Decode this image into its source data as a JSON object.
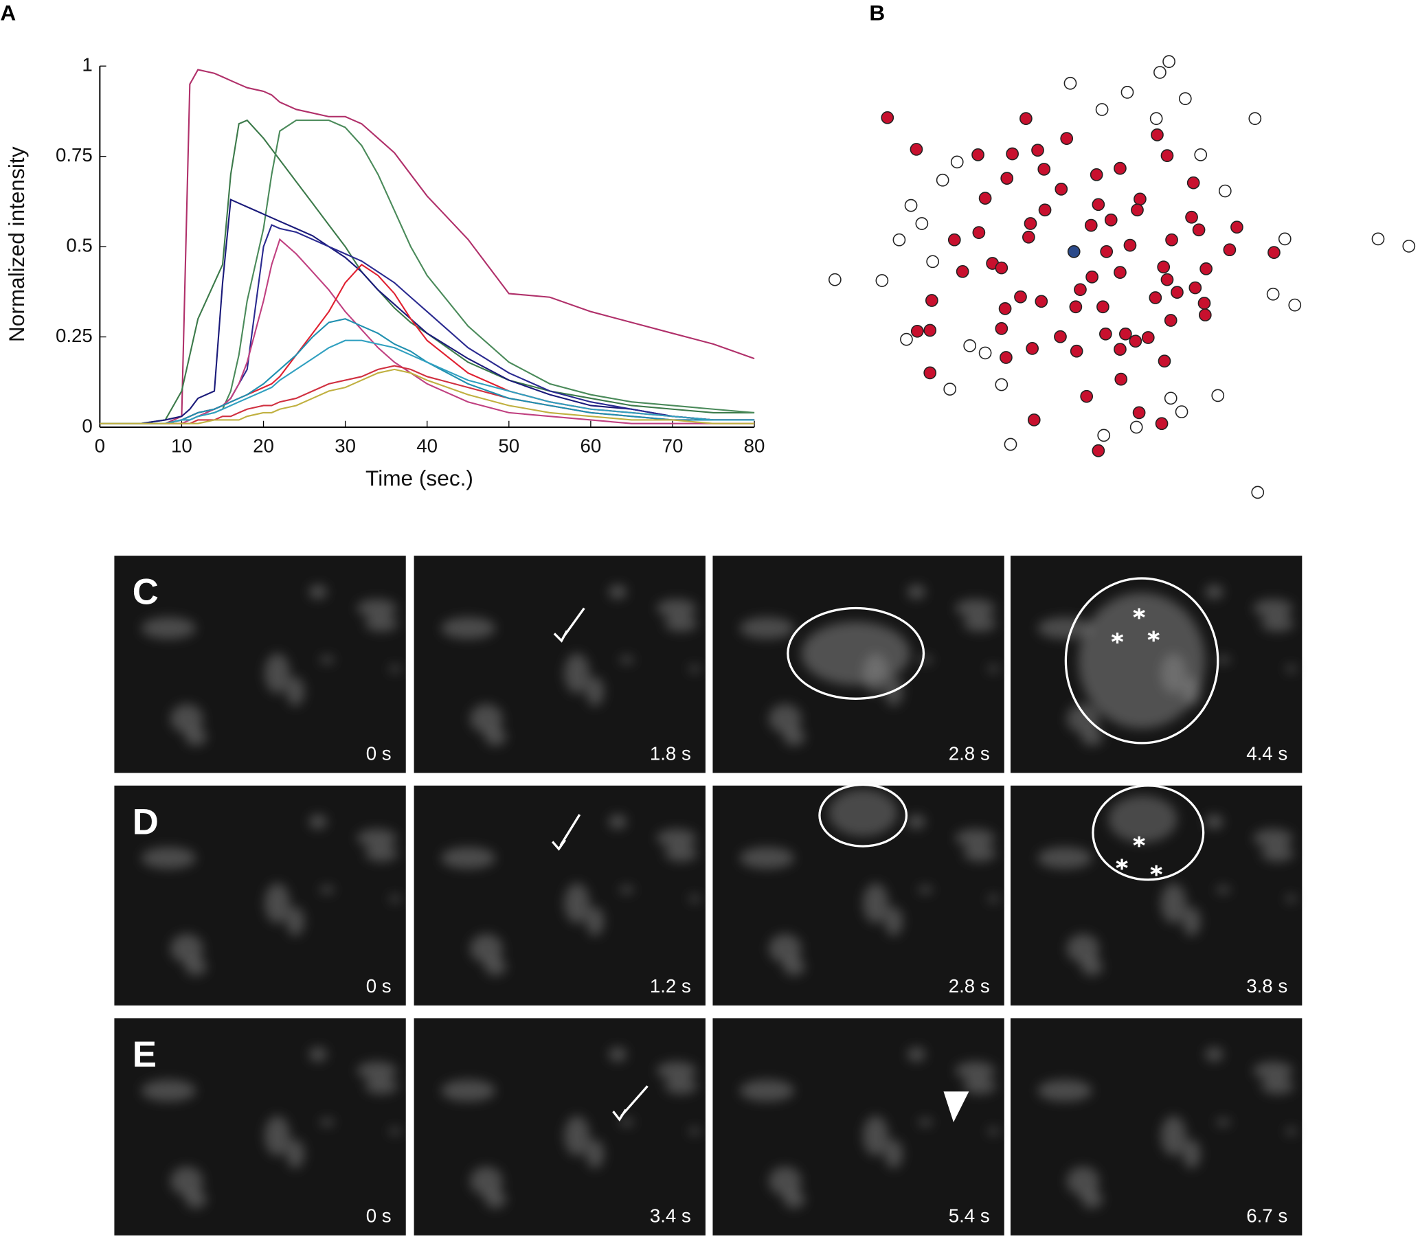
{
  "chart_data": [
    {
      "type": "line",
      "panel_label": "A",
      "xlabel": "Time (sec.)",
      "ylabel": "Normalized intensity",
      "x": [
        0,
        5,
        8,
        10,
        11,
        12,
        14,
        15,
        16,
        17,
        18,
        20,
        21,
        22,
        24,
        26,
        28,
        30,
        32,
        34,
        36,
        38,
        40,
        45,
        50,
        55,
        60,
        65,
        70,
        75,
        80
      ],
      "xlim": [
        0,
        80
      ],
      "xticks": [
        0,
        10,
        20,
        30,
        40,
        50,
        60,
        70,
        80
      ],
      "ylim": [
        0,
        1
      ],
      "yticks": [
        0,
        0.25,
        0.5,
        0.75,
        1
      ],
      "series": [
        {
          "color": "#b0306a",
          "values": [
            0.01,
            0.01,
            0.01,
            0.03,
            0.95,
            0.99,
            0.98,
            0.97,
            0.96,
            0.95,
            0.94,
            0.93,
            0.92,
            0.9,
            0.88,
            0.87,
            0.86,
            0.86,
            0.84,
            0.8,
            0.76,
            0.7,
            0.64,
            0.52,
            0.37,
            0.36,
            0.32,
            0.29,
            0.26,
            0.23,
            0.19
          ]
        },
        {
          "color": "#3c7a4a",
          "values": [
            0.01,
            0.01,
            0.02,
            0.1,
            0.2,
            0.3,
            0.4,
            0.45,
            0.7,
            0.84,
            0.85,
            0.8,
            0.77,
            0.74,
            0.68,
            0.62,
            0.56,
            0.5,
            0.43,
            0.38,
            0.33,
            0.29,
            0.26,
            0.18,
            0.13,
            0.1,
            0.08,
            0.06,
            0.05,
            0.04,
            0.04
          ]
        },
        {
          "color": "#4a8a5a",
          "values": [
            0.01,
            0.01,
            0.01,
            0.02,
            0.02,
            0.03,
            0.04,
            0.05,
            0.1,
            0.2,
            0.35,
            0.55,
            0.7,
            0.82,
            0.85,
            0.85,
            0.85,
            0.83,
            0.78,
            0.7,
            0.6,
            0.5,
            0.42,
            0.28,
            0.18,
            0.12,
            0.09,
            0.07,
            0.06,
            0.05,
            0.04
          ]
        },
        {
          "color": "#1a1a7a",
          "values": [
            0.01,
            0.01,
            0.02,
            0.03,
            0.05,
            0.08,
            0.1,
            0.4,
            0.63,
            0.62,
            0.61,
            0.59,
            0.58,
            0.57,
            0.55,
            0.53,
            0.5,
            0.47,
            0.43,
            0.38,
            0.34,
            0.3,
            0.26,
            0.19,
            0.13,
            0.09,
            0.06,
            0.05,
            0.03,
            0.02,
            0.02
          ]
        },
        {
          "color": "#2a2a90",
          "values": [
            0.01,
            0.01,
            0.01,
            0.02,
            0.03,
            0.04,
            0.05,
            0.06,
            0.08,
            0.12,
            0.16,
            0.5,
            0.56,
            0.55,
            0.54,
            0.52,
            0.5,
            0.48,
            0.46,
            0.43,
            0.4,
            0.36,
            0.32,
            0.22,
            0.15,
            0.1,
            0.07,
            0.05,
            0.03,
            0.02,
            0.02
          ]
        },
        {
          "color": "#c04080",
          "values": [
            0.01,
            0.01,
            0.01,
            0.01,
            0.02,
            0.03,
            0.05,
            0.06,
            0.08,
            0.12,
            0.18,
            0.35,
            0.45,
            0.52,
            0.48,
            0.43,
            0.38,
            0.32,
            0.27,
            0.22,
            0.18,
            0.15,
            0.12,
            0.07,
            0.04,
            0.03,
            0.02,
            0.01,
            0.01,
            0.01,
            0.01
          ]
        },
        {
          "color": "#e02030",
          "values": [
            0.01,
            0.01,
            0.01,
            0.02,
            0.03,
            0.04,
            0.05,
            0.06,
            0.07,
            0.08,
            0.09,
            0.11,
            0.12,
            0.14,
            0.2,
            0.26,
            0.32,
            0.4,
            0.45,
            0.42,
            0.37,
            0.3,
            0.24,
            0.15,
            0.1,
            0.07,
            0.05,
            0.04,
            0.03,
            0.02,
            0.02
          ]
        },
        {
          "color": "#d03040",
          "values": [
            0.01,
            0.01,
            0.01,
            0.01,
            0.01,
            0.02,
            0.02,
            0.03,
            0.03,
            0.04,
            0.05,
            0.06,
            0.06,
            0.07,
            0.08,
            0.1,
            0.12,
            0.13,
            0.14,
            0.16,
            0.17,
            0.16,
            0.14,
            0.11,
            0.08,
            0.06,
            0.04,
            0.03,
            0.02,
            0.02,
            0.02
          ]
        },
        {
          "color": "#2090b0",
          "values": [
            0.01,
            0.01,
            0.01,
            0.02,
            0.03,
            0.04,
            0.05,
            0.06,
            0.07,
            0.08,
            0.09,
            0.12,
            0.14,
            0.16,
            0.2,
            0.25,
            0.29,
            0.3,
            0.28,
            0.26,
            0.23,
            0.21,
            0.18,
            0.12,
            0.08,
            0.06,
            0.04,
            0.03,
            0.02,
            0.02,
            0.02
          ]
        },
        {
          "color": "#30a0c0",
          "values": [
            0.01,
            0.01,
            0.01,
            0.02,
            0.02,
            0.03,
            0.04,
            0.05,
            0.06,
            0.07,
            0.08,
            0.1,
            0.11,
            0.13,
            0.16,
            0.19,
            0.22,
            0.24,
            0.24,
            0.23,
            0.22,
            0.2,
            0.18,
            0.13,
            0.1,
            0.07,
            0.05,
            0.04,
            0.03,
            0.02,
            0.02
          ]
        },
        {
          "color": "#c0b040",
          "values": [
            0.01,
            0.01,
            0.01,
            0.01,
            0.01,
            0.01,
            0.02,
            0.02,
            0.02,
            0.02,
            0.03,
            0.04,
            0.04,
            0.05,
            0.06,
            0.08,
            0.1,
            0.11,
            0.13,
            0.15,
            0.16,
            0.15,
            0.13,
            0.09,
            0.06,
            0.04,
            0.03,
            0.02,
            0.02,
            0.01,
            0.01
          ]
        }
      ]
    },
    {
      "type": "scatter",
      "panel_label": "B",
      "xlim": [
        900,
        1560
      ],
      "ylim": [
        560,
        60
      ],
      "series": [
        {
          "color": "#c8102e",
          "x": [
            980,
            1012,
            1080,
            1118,
            1133,
            1146,
            1178,
            1153,
            1112,
            1088,
            1154,
            1172,
            1211,
            1237,
            1213,
            1259,
            1256,
            1227,
            1205,
            1138,
            1136,
            1081,
            1054,
            1096,
            1106,
            1063,
            1029,
            1027,
            1013,
            1027,
            1127,
            1110,
            1150,
            1106,
            1111,
            1140,
            1142,
            1171,
            1189,
            1188,
            1193,
            1200,
            1222,
            1248,
            1237,
            1218,
            1206,
            1221,
            1237,
            1243,
            1254,
            1268,
            1238,
            1258,
            1283,
            1286,
            1293,
            1276,
            1289,
            1300,
            1285,
            1294,
            1278,
            1289,
            1318,
            1316,
            1324,
            1366,
            1358,
            1332,
            1320,
            1330,
            1331,
            1407,
            1213
          ],
          "y": [
            130,
            165,
            171,
            170,
            131,
            166,
            153,
            187,
            197,
            219,
            232,
            209,
            193,
            186,
            226,
            220,
            232,
            243,
            249,
            247,
            262,
            257,
            265,
            291,
            296,
            300,
            332,
            365,
            366,
            412,
            328,
            341,
            333,
            363,
            395,
            385,
            464,
            372,
            388,
            339,
            320,
            438,
            278,
            271,
            301,
            339,
            306,
            369,
            386,
            369,
            377,
            373,
            419,
            456,
            468,
            399,
            354,
            329,
            309,
            323,
            295,
            265,
            149,
            172,
            202,
            240,
            254,
            251,
            276,
            297,
            318,
            335,
            348,
            279,
            498
          ]
        },
        {
          "color": "#ffffff",
          "x": [
            1291,
            1281,
            1182,
            1245,
            1309,
            1217,
            1277,
            1386,
            1326,
            1057,
            1041,
            1006,
            1018,
            993,
            1030,
            922,
            974,
            1001,
            1071,
            1088,
            1106,
            1049,
            1353,
            1419,
            1522,
            1556,
            1406,
            1430,
            1345,
            1293,
            1305,
            1255,
            1219,
            1116,
            1389
          ],
          "y": [
            68,
            80,
            92,
            102,
            109,
            121,
            131,
            131,
            171,
            179,
            199,
            227,
            247,
            265,
            289,
            309,
            310,
            375,
            382,
            390,
            425,
            430,
            211,
            264,
            264,
            272,
            325,
            337,
            437,
            440,
            455,
            472,
            481,
            491,
            544
          ]
        },
        {
          "color": "#2b4a8a",
          "x": [
            1186
          ],
          "y": [
            278
          ]
        }
      ]
    }
  ],
  "image_rows": [
    {
      "label": "C",
      "frames": [
        "0 s",
        "1.8 s",
        "2.8 s",
        "4.4 s"
      ]
    },
    {
      "label": "D",
      "frames": [
        "0 s",
        "1.2 s",
        "2.8 s",
        "3.8 s"
      ]
    },
    {
      "label": "E",
      "frames": [
        "0 s",
        "3.4 s",
        "5.4 s",
        "6.7 s"
      ]
    }
  ]
}
